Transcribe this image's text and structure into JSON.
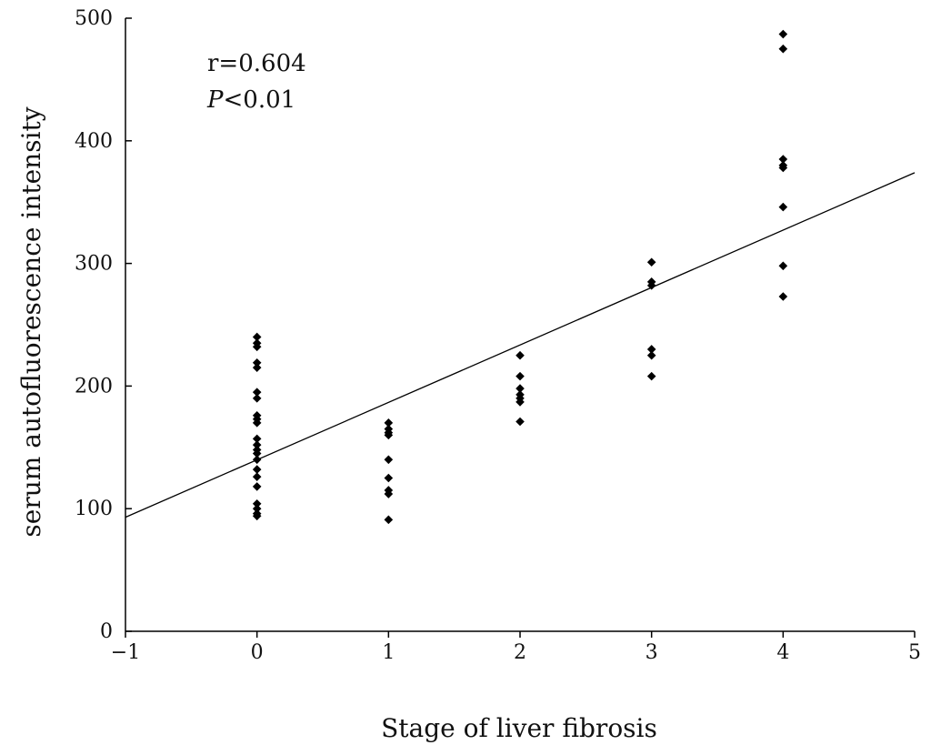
{
  "chart_data": {
    "type": "scatter",
    "title": "",
    "xlabel": "Stage of liver fibrosis",
    "ylabel": "serum autofluorescence intensity",
    "xlim": [
      -1,
      5
    ],
    "ylim": [
      0,
      500
    ],
    "xticks": [
      -1,
      0,
      1,
      2,
      3,
      4,
      5
    ],
    "yticks": [
      0,
      100,
      200,
      300,
      400,
      500
    ],
    "xtick_labels": [
      "−1",
      "0",
      "1",
      "2",
      "3",
      "4",
      "5"
    ],
    "ytick_labels": [
      "0",
      "100",
      "200",
      "300",
      "400",
      "500"
    ],
    "grid": false,
    "annotations": {
      "r_text": "r=0.604",
      "p_symbol": "P",
      "p_rest": "<0.01"
    },
    "trendline": {
      "x": [
        -1,
        5
      ],
      "y": [
        93,
        374
      ]
    },
    "points": {
      "x": [
        0,
        0,
        0,
        0,
        0,
        0,
        0,
        0,
        0,
        0,
        0,
        0,
        0,
        0,
        0,
        0,
        0,
        0,
        0,
        0,
        0,
        0,
        1,
        1,
        1,
        1,
        1,
        1,
        1,
        1,
        1,
        2,
        2,
        2,
        2,
        2,
        2,
        2,
        3,
        3,
        3,
        3,
        3,
        3,
        4,
        4,
        4,
        4,
        4,
        4,
        4,
        4
      ],
      "y": [
        240,
        235,
        219,
        215,
        195,
        190,
        176,
        173,
        170,
        157,
        152,
        148,
        145,
        140,
        132,
        126,
        118,
        104,
        100,
        96,
        94,
        232,
        170,
        165,
        160,
        140,
        125,
        115,
        112,
        91,
        162,
        225,
        208,
        198,
        193,
        190,
        187,
        171,
        301,
        285,
        282,
        230,
        225,
        208,
        487,
        475,
        385,
        378,
        346,
        298,
        273,
        380
      ]
    }
  }
}
